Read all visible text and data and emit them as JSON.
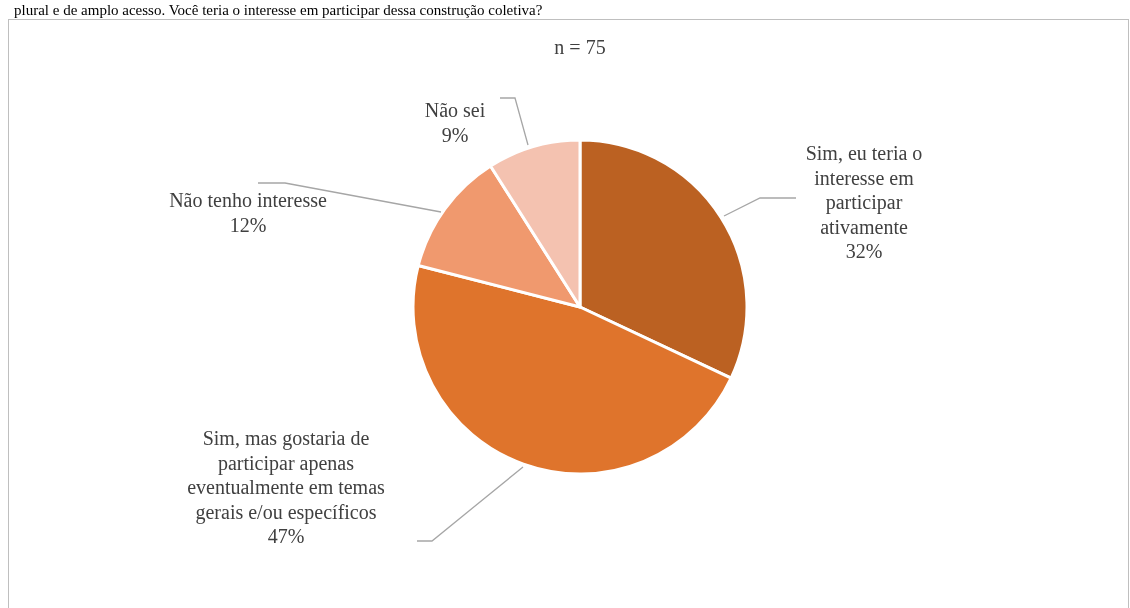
{
  "chart_data": {
    "type": "pie",
    "title": "n = 75",
    "annotations": [
      "plural e de amplo acesso. Você teria o interesse em participar dessa construção coletiva?"
    ],
    "categories": [
      "Sim, eu teria o interesse em participar ativamente",
      "Sim, mas gostaria de participar apenas eventualmente em temas gerais e/ou específicos",
      "Não tenho interesse",
      "Não sei"
    ],
    "values": [
      32,
      47,
      12,
      9
    ],
    "colors": [
      "#bb6122",
      "#df742c",
      "#f0996e",
      "#f4c2b0"
    ],
    "value_labels": [
      "32%",
      "47%",
      "12%",
      "9%"
    ],
    "legend": false
  }
}
